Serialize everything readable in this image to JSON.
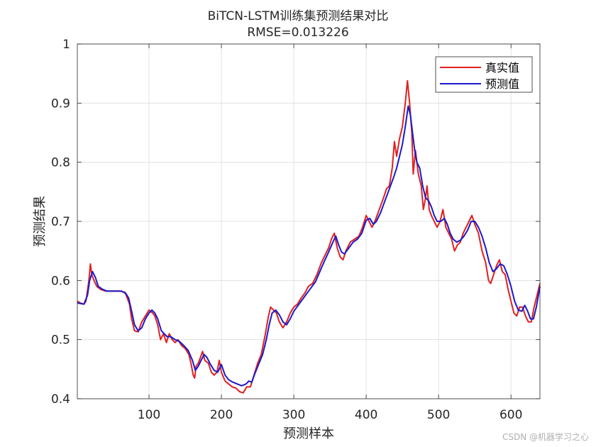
{
  "chart_data": {
    "type": "line",
    "title": "BiTCN-LSTM训练集预测结果对比",
    "subtitle": "RMSE=0.013226",
    "xlabel": "预测样本",
    "ylabel": "预测结果",
    "xlim": [
      1,
      640
    ],
    "ylim": [
      0.4,
      1
    ],
    "xticks": [
      100,
      200,
      300,
      400,
      500,
      600
    ],
    "yticks": [
      0.4,
      0.5,
      0.6,
      0.7,
      0.8,
      0.9,
      1
    ],
    "ytick_labels": [
      "0.4",
      "0.5",
      "0.6",
      "0.7",
      "0.8",
      "0.9",
      "1"
    ],
    "grid": true,
    "legend_position": "top-right",
    "series": [
      {
        "name": "真实值",
        "color": "#e02020",
        "points": [
          [
            1,
            0.565
          ],
          [
            5,
            0.562
          ],
          [
            10,
            0.56
          ],
          [
            13,
            0.565
          ],
          [
            17,
            0.6
          ],
          [
            19,
            0.628
          ],
          [
            21,
            0.61
          ],
          [
            24,
            0.6
          ],
          [
            28,
            0.59
          ],
          [
            33,
            0.585
          ],
          [
            40,
            0.582
          ],
          [
            50,
            0.582
          ],
          [
            60,
            0.582
          ],
          [
            67,
            0.58
          ],
          [
            70,
            0.57
          ],
          [
            73,
            0.56
          ],
          [
            76,
            0.535
          ],
          [
            80,
            0.515
          ],
          [
            85,
            0.513
          ],
          [
            90,
            0.53
          ],
          [
            95,
            0.54
          ],
          [
            100,
            0.55
          ],
          [
            105,
            0.545
          ],
          [
            108,
            0.54
          ],
          [
            112,
            0.525
          ],
          [
            116,
            0.5
          ],
          [
            120,
            0.51
          ],
          [
            124,
            0.495
          ],
          [
            128,
            0.51
          ],
          [
            132,
            0.5
          ],
          [
            136,
            0.495
          ],
          [
            140,
            0.5
          ],
          [
            145,
            0.49
          ],
          [
            150,
            0.485
          ],
          [
            155,
            0.475
          ],
          [
            158,
            0.46
          ],
          [
            161,
            0.44
          ],
          [
            163,
            0.435
          ],
          [
            165,
            0.455
          ],
          [
            168,
            0.46
          ],
          [
            171,
            0.47
          ],
          [
            174,
            0.48
          ],
          [
            177,
            0.465
          ],
          [
            182,
            0.46
          ],
          [
            186,
            0.445
          ],
          [
            190,
            0.44
          ],
          [
            194,
            0.445
          ],
          [
            197,
            0.465
          ],
          [
            200,
            0.445
          ],
          [
            205,
            0.43
          ],
          [
            210,
            0.425
          ],
          [
            215,
            0.42
          ],
          [
            220,
            0.418
          ],
          [
            225,
            0.412
          ],
          [
            230,
            0.41
          ],
          [
            235,
            0.42
          ],
          [
            240,
            0.42
          ],
          [
            245,
            0.44
          ],
          [
            250,
            0.46
          ],
          [
            255,
            0.475
          ],
          [
            260,
            0.505
          ],
          [
            265,
            0.54
          ],
          [
            268,
            0.555
          ],
          [
            272,
            0.55
          ],
          [
            276,
            0.545
          ],
          [
            280,
            0.53
          ],
          [
            285,
            0.52
          ],
          [
            290,
            0.53
          ],
          [
            295,
            0.545
          ],
          [
            300,
            0.555
          ],
          [
            305,
            0.56
          ],
          [
            310,
            0.57
          ],
          [
            316,
            0.58
          ],
          [
            320,
            0.59
          ],
          [
            326,
            0.595
          ],
          [
            332,
            0.61
          ],
          [
            338,
            0.63
          ],
          [
            344,
            0.645
          ],
          [
            348,
            0.655
          ],
          [
            352,
            0.67
          ],
          [
            356,
            0.68
          ],
          [
            360,
            0.655
          ],
          [
            364,
            0.64
          ],
          [
            368,
            0.635
          ],
          [
            372,
            0.65
          ],
          [
            378,
            0.665
          ],
          [
            384,
            0.67
          ],
          [
            390,
            0.675
          ],
          [
            395,
            0.69
          ],
          [
            400,
            0.71
          ],
          [
            404,
            0.7
          ],
          [
            408,
            0.69
          ],
          [
            412,
            0.7
          ],
          [
            418,
            0.72
          ],
          [
            424,
            0.74
          ],
          [
            428,
            0.755
          ],
          [
            432,
            0.76
          ],
          [
            436,
            0.79
          ],
          [
            439,
            0.835
          ],
          [
            442,
            0.81
          ],
          [
            446,
            0.84
          ],
          [
            450,
            0.86
          ],
          [
            454,
            0.9
          ],
          [
            457,
            0.938
          ],
          [
            460,
            0.9
          ],
          [
            463,
            0.85
          ],
          [
            465,
            0.78
          ],
          [
            468,
            0.82
          ],
          [
            472,
            0.78
          ],
          [
            476,
            0.76
          ],
          [
            479,
            0.72
          ],
          [
            482,
            0.74
          ],
          [
            484,
            0.76
          ],
          [
            487,
            0.72
          ],
          [
            490,
            0.71
          ],
          [
            494,
            0.7
          ],
          [
            498,
            0.69
          ],
          [
            502,
            0.7
          ],
          [
            506,
            0.72
          ],
          [
            510,
            0.69
          ],
          [
            514,
            0.68
          ],
          [
            518,
            0.67
          ],
          [
            522,
            0.65
          ],
          [
            526,
            0.66
          ],
          [
            530,
            0.665
          ],
          [
            534,
            0.68
          ],
          [
            538,
            0.69
          ],
          [
            542,
            0.7
          ],
          [
            546,
            0.71
          ],
          [
            550,
            0.695
          ],
          [
            555,
            0.68
          ],
          [
            560,
            0.65
          ],
          [
            565,
            0.63
          ],
          [
            569,
            0.6
          ],
          [
            572,
            0.595
          ],
          [
            576,
            0.61
          ],
          [
            580,
            0.625
          ],
          [
            584,
            0.635
          ],
          [
            588,
            0.615
          ],
          [
            592,
            0.61
          ],
          [
            596,
            0.585
          ],
          [
            600,
            0.565
          ],
          [
            604,
            0.545
          ],
          [
            608,
            0.54
          ],
          [
            612,
            0.555
          ],
          [
            616,
            0.555
          ],
          [
            620,
            0.54
          ],
          [
            624,
            0.53
          ],
          [
            628,
            0.53
          ],
          [
            632,
            0.555
          ],
          [
            636,
            0.575
          ],
          [
            640,
            0.595
          ]
        ]
      },
      {
        "name": "预测值",
        "color": "#1a1acc",
        "points": [
          [
            1,
            0.562
          ],
          [
            10,
            0.56
          ],
          [
            15,
            0.575
          ],
          [
            18,
            0.6
          ],
          [
            22,
            0.615
          ],
          [
            26,
            0.605
          ],
          [
            30,
            0.59
          ],
          [
            36,
            0.585
          ],
          [
            42,
            0.582
          ],
          [
            52,
            0.582
          ],
          [
            62,
            0.582
          ],
          [
            68,
            0.578
          ],
          [
            72,
            0.57
          ],
          [
            76,
            0.548
          ],
          [
            80,
            0.525
          ],
          [
            85,
            0.515
          ],
          [
            90,
            0.52
          ],
          [
            95,
            0.535
          ],
          [
            100,
            0.545
          ],
          [
            104,
            0.55
          ],
          [
            108,
            0.545
          ],
          [
            112,
            0.535
          ],
          [
            117,
            0.515
          ],
          [
            121,
            0.51
          ],
          [
            125,
            0.505
          ],
          [
            130,
            0.505
          ],
          [
            136,
            0.5
          ],
          [
            142,
            0.497
          ],
          [
            148,
            0.49
          ],
          [
            154,
            0.482
          ],
          [
            160,
            0.465
          ],
          [
            164,
            0.448
          ],
          [
            168,
            0.455
          ],
          [
            172,
            0.465
          ],
          [
            176,
            0.475
          ],
          [
            180,
            0.47
          ],
          [
            185,
            0.458
          ],
          [
            190,
            0.448
          ],
          [
            195,
            0.445
          ],
          [
            200,
            0.458
          ],
          [
            205,
            0.44
          ],
          [
            210,
            0.432
          ],
          [
            216,
            0.428
          ],
          [
            222,
            0.425
          ],
          [
            228,
            0.422
          ],
          [
            234,
            0.425
          ],
          [
            238,
            0.43
          ],
          [
            242,
            0.428
          ],
          [
            246,
            0.442
          ],
          [
            252,
            0.46
          ],
          [
            257,
            0.475
          ],
          [
            262,
            0.5
          ],
          [
            266,
            0.525
          ],
          [
            270,
            0.545
          ],
          [
            275,
            0.55
          ],
          [
            280,
            0.542
          ],
          [
            285,
            0.53
          ],
          [
            290,
            0.525
          ],
          [
            295,
            0.535
          ],
          [
            300,
            0.548
          ],
          [
            306,
            0.558
          ],
          [
            312,
            0.568
          ],
          [
            318,
            0.578
          ],
          [
            324,
            0.588
          ],
          [
            330,
            0.598
          ],
          [
            336,
            0.615
          ],
          [
            342,
            0.632
          ],
          [
            348,
            0.648
          ],
          [
            354,
            0.665
          ],
          [
            358,
            0.675
          ],
          [
            362,
            0.66
          ],
          [
            366,
            0.648
          ],
          [
            370,
            0.645
          ],
          [
            376,
            0.655
          ],
          [
            382,
            0.665
          ],
          [
            388,
            0.67
          ],
          [
            394,
            0.68
          ],
          [
            400,
            0.702
          ],
          [
            405,
            0.705
          ],
          [
            410,
            0.695
          ],
          [
            414,
            0.7
          ],
          [
            420,
            0.715
          ],
          [
            426,
            0.735
          ],
          [
            432,
            0.755
          ],
          [
            438,
            0.775
          ],
          [
            442,
            0.79
          ],
          [
            446,
            0.81
          ],
          [
            450,
            0.83
          ],
          [
            454,
            0.86
          ],
          [
            458,
            0.895
          ],
          [
            461,
            0.88
          ],
          [
            464,
            0.85
          ],
          [
            467,
            0.82
          ],
          [
            470,
            0.8
          ],
          [
            474,
            0.79
          ],
          [
            478,
            0.76
          ],
          [
            482,
            0.74
          ],
          [
            486,
            0.735
          ],
          [
            490,
            0.725
          ],
          [
            494,
            0.71
          ],
          [
            498,
            0.7
          ],
          [
            503,
            0.7
          ],
          [
            508,
            0.705
          ],
          [
            512,
            0.695
          ],
          [
            516,
            0.68
          ],
          [
            520,
            0.67
          ],
          [
            525,
            0.665
          ],
          [
            530,
            0.668
          ],
          [
            535,
            0.675
          ],
          [
            540,
            0.685
          ],
          [
            545,
            0.7
          ],
          [
            550,
            0.7
          ],
          [
            555,
            0.69
          ],
          [
            560,
            0.675
          ],
          [
            565,
            0.655
          ],
          [
            570,
            0.63
          ],
          [
            575,
            0.615
          ],
          [
            580,
            0.62
          ],
          [
            585,
            0.628
          ],
          [
            590,
            0.625
          ],
          [
            595,
            0.61
          ],
          [
            600,
            0.59
          ],
          [
            605,
            0.565
          ],
          [
            610,
            0.55
          ],
          [
            615,
            0.548
          ],
          [
            619,
            0.558
          ],
          [
            623,
            0.548
          ],
          [
            627,
            0.535
          ],
          [
            631,
            0.535
          ],
          [
            635,
            0.555
          ],
          [
            640,
            0.59
          ]
        ]
      }
    ]
  },
  "watermark": "CSDN @机器学习之心"
}
